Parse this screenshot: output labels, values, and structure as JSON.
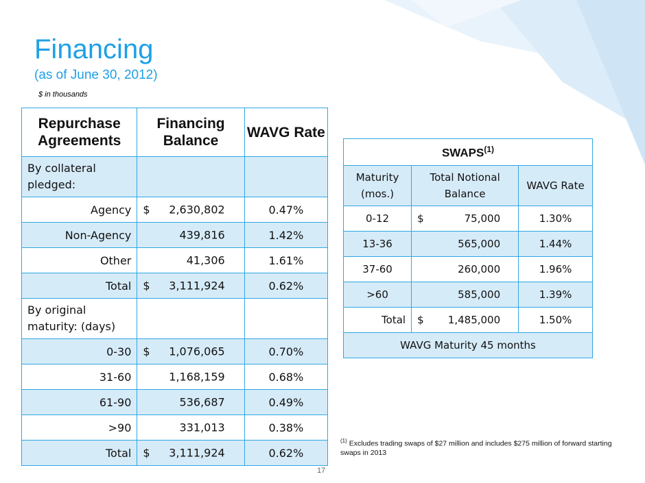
{
  "header": {
    "title": "Financing",
    "subtitle": "(as of June 30, 2012)",
    "units_note": "$ in thousands"
  },
  "repo_table": {
    "headers": [
      "Repurchase Agreements",
      "Financing Balance",
      "WAVG Rate"
    ],
    "section1_label": "By collateral pledged:",
    "section1_rows": [
      {
        "label": "Agency",
        "dollar": "$",
        "amount": "2,630,802",
        "rate": "0.47%"
      },
      {
        "label": "Non-Agency",
        "dollar": "",
        "amount": "439,816",
        "rate": "1.42%"
      },
      {
        "label": "Other",
        "dollar": "",
        "amount": "41,306",
        "rate": "1.61%"
      },
      {
        "label": "Total",
        "dollar": "$",
        "amount": "3,111,924",
        "rate": "0.62%"
      }
    ],
    "section2_label": "By original maturity: (days)",
    "section2_rows": [
      {
        "label": "0-30",
        "dollar": "$",
        "amount": "1,076,065",
        "rate": "0.70%"
      },
      {
        "label": "31-60",
        "dollar": "",
        "amount": "1,168,159",
        "rate": "0.68%"
      },
      {
        "label": "61-90",
        "dollar": "",
        "amount": "536,687",
        "rate": "0.49%"
      },
      {
        "label": ">90",
        "dollar": "",
        "amount": "331,013",
        "rate": "0.38%"
      },
      {
        "label": "Total",
        "dollar": "$",
        "amount": "3,111,924",
        "rate": "0.62%"
      }
    ]
  },
  "swaps_table": {
    "title": "SWAPS",
    "title_sup": "(1)",
    "headers": [
      "Maturity (mos.)",
      "Total Notional Balance",
      "WAVG Rate"
    ],
    "rows": [
      {
        "label": "0-12",
        "dollar": "$",
        "amount": "75,000",
        "rate": "1.30%"
      },
      {
        "label": "13-36",
        "dollar": "",
        "amount": "565,000",
        "rate": "1.44%"
      },
      {
        "label": "37-60",
        "dollar": "",
        "amount": "260,000",
        "rate": "1.96%"
      },
      {
        "label": ">60",
        "dollar": "",
        "amount": "585,000",
        "rate": "1.39%"
      },
      {
        "label": "Total",
        "dollar": "$",
        "amount": "1,485,000",
        "rate": "1.50%"
      }
    ],
    "footer": "WAVG Maturity 45 months"
  },
  "footnote": {
    "marker": "(1)",
    "text": "Excludes trading swaps of $27 million and includes $275 million of forward starting swaps in 2013"
  },
  "page_number": "17",
  "colors": {
    "accent": "#1ea0e6",
    "row_shade": "#d6ebf8",
    "border": "#2ea7e3"
  }
}
